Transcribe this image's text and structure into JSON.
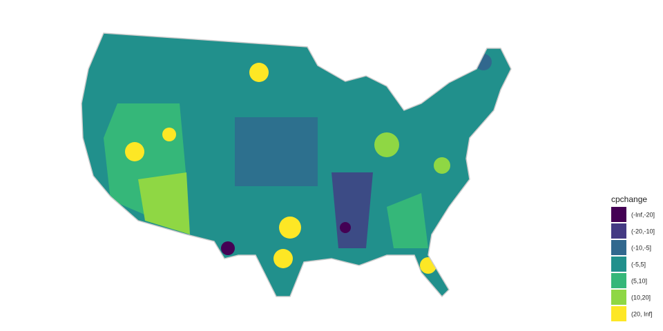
{
  "legend": {
    "title": "cpchange",
    "items": [
      {
        "label": "(-Inf,-20]",
        "color": "#440154"
      },
      {
        "label": "(-20,-10]",
        "color": "#443a83"
      },
      {
        "label": "(-10,-5]",
        "color": "#31688e"
      },
      {
        "label": "(-5,5]",
        "color": "#21908c"
      },
      {
        "label": "(5,10]",
        "color": "#35b779"
      },
      {
        "label": "(10,20]",
        "color": "#8fd744"
      },
      {
        "label": "(20, Inf]",
        "color": "#fde725"
      }
    ]
  }
}
